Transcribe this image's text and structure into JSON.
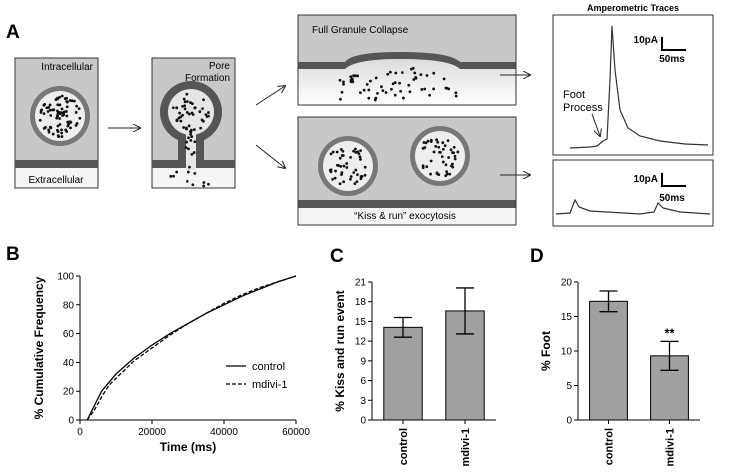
{
  "panel_labels": [
    "A",
    "B",
    "C",
    "D"
  ],
  "diagram": {
    "intracellular": "Intracellular",
    "extracellular": "Extracellular",
    "pore_formation": [
      "Pore",
      "Formation"
    ],
    "full_collapse": "Full Granule Collapse",
    "kiss_and_run": "“Kiss & run” exocytosis",
    "traces_title": "Amperometric Traces",
    "foot_process": [
      "Foot",
      "Process"
    ],
    "scale_top": {
      "current": "10pA",
      "time": "50ms"
    },
    "scale_bottom": {
      "current": "10pA",
      "time": "50ms"
    }
  },
  "chart_data": [
    {
      "type": "line",
      "xlabel": "Time  (ms)",
      "ylabel": "% Cumulative Frequency",
      "x": [
        2000,
        4000,
        6000,
        8000,
        10000,
        15000,
        20000,
        25000,
        30000,
        35000,
        40000,
        45000,
        50000,
        55000,
        60000
      ],
      "series": [
        {
          "name": "control",
          "color": "#000000",
          "style": "solid",
          "values": [
            0,
            10,
            20,
            26,
            32,
            43,
            52,
            60,
            67,
            74,
            80,
            86,
            91,
            96,
            100
          ]
        },
        {
          "name": "mdivi-1",
          "color": "#000000",
          "style": "dashed",
          "values": [
            0,
            7,
            16,
            24,
            29,
            41,
            50,
            59,
            67,
            74,
            81,
            87,
            92,
            96,
            100
          ]
        }
      ],
      "xlim": [
        0,
        60000
      ],
      "xticks": [
        0,
        20000,
        40000,
        60000
      ],
      "ylim": [
        0,
        100
      ],
      "yticks": [
        0,
        20,
        40,
        60,
        80,
        100
      ],
      "legend": "right"
    },
    {
      "type": "bar",
      "ylabel": "% Kiss and run event",
      "categories": [
        "control",
        "mdivi-1"
      ],
      "values": [
        14.1,
        16.6
      ],
      "errors": [
        1.5,
        3.5
      ],
      "color": "#a0a0a0",
      "ylim": [
        0,
        21
      ],
      "yticks": [
        0,
        3,
        6,
        9,
        12,
        15,
        18,
        21
      ]
    },
    {
      "type": "bar",
      "ylabel": "% Foot",
      "categories": [
        "control",
        "mdivi-1"
      ],
      "values": [
        17.2,
        9.3
      ],
      "errors": [
        1.5,
        2.1
      ],
      "color": "#a0a0a0",
      "ylim": [
        0,
        20
      ],
      "yticks": [
        0,
        5,
        10,
        15,
        20
      ],
      "annotation": "**"
    }
  ]
}
